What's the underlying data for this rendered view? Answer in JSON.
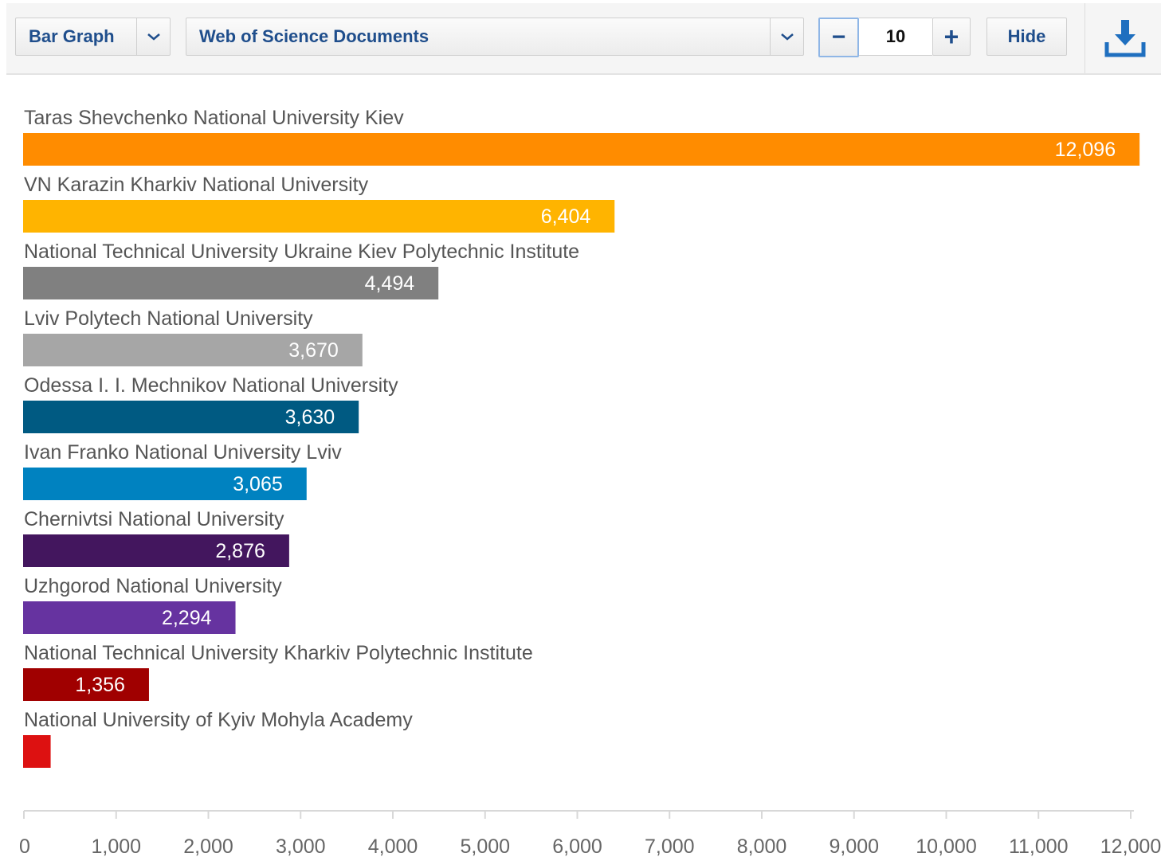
{
  "toolbar": {
    "chart_type": "Bar Graph",
    "field": "Web of Science Documents",
    "count": "10",
    "minus_label": "−",
    "plus_label": "+",
    "hide_label": "Hide",
    "download_icon": "download-icon"
  },
  "colors": {
    "toolbar_text": "#1f4e8c",
    "axis": "#d8d8d8",
    "label_text": "#555555"
  },
  "chart_data": {
    "type": "bar",
    "orientation": "horizontal",
    "categories": [
      "Taras Shevchenko National University Kiev",
      "VN Karazin Kharkiv National University",
      "National Technical University Ukraine Kiev Polytechnic Institute",
      "Lviv Polytech National University",
      "Odessa I. I. Mechnikov National University",
      "Ivan Franko National University Lviv",
      "Chernivtsi National University",
      "Uzhgorod National University",
      "National Technical University Kharkiv Polytechnic Institute",
      "National University of Kyiv Mohyla Academy"
    ],
    "values": [
      12096,
      6404,
      4494,
      3670,
      3630,
      3065,
      2876,
      2294,
      1356,
      290
    ],
    "value_labels": [
      "12,096",
      "6,404",
      "4,494",
      "3,670",
      "3,630",
      "3,065",
      "2,876",
      "2,294",
      "1,356",
      ""
    ],
    "colors": [
      "#ff8c00",
      "#ffb400",
      "#808080",
      "#a6a6a6",
      "#005a82",
      "#0082c0",
      "#43165e",
      "#6633a0",
      "#a00000",
      "#dd1111"
    ],
    "xlim": [
      0,
      12000
    ],
    "xticks": [
      0,
      1000,
      2000,
      3000,
      4000,
      5000,
      6000,
      7000,
      8000,
      9000,
      10000,
      11000,
      12000
    ],
    "xtick_labels": [
      "0",
      "1,000",
      "2,000",
      "3,000",
      "4,000",
      "5,000",
      "6,000",
      "7,000",
      "8,000",
      "9,000",
      "10,000",
      "11,000",
      "12,000"
    ],
    "title": "",
    "xlabel": "",
    "ylabel": ""
  }
}
